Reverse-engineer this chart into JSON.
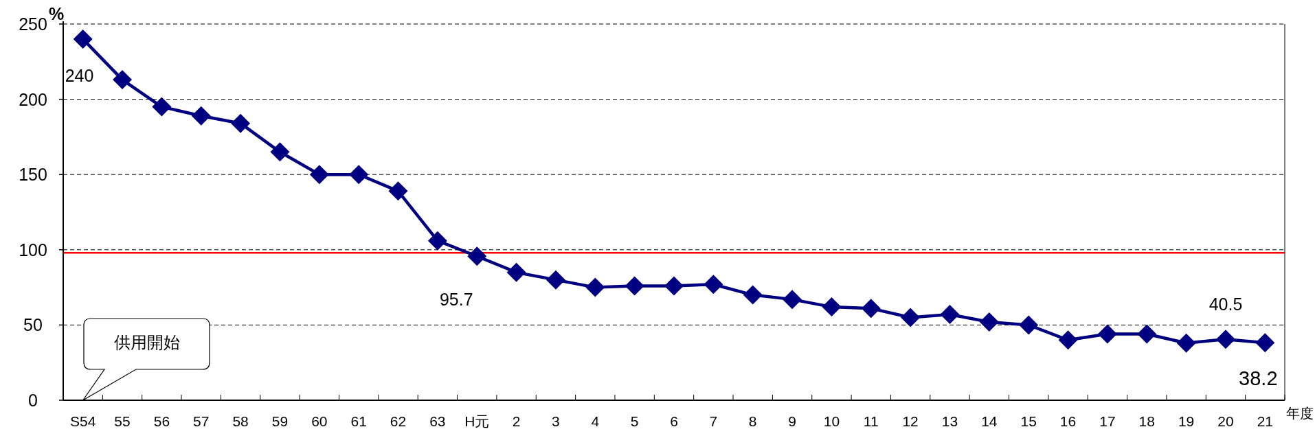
{
  "chart_data": {
    "type": "line",
    "ylabel": "%",
    "xlabel": "年度",
    "categories": [
      "S54",
      "55",
      "56",
      "57",
      "58",
      "59",
      "60",
      "61",
      "62",
      "63",
      "H元",
      "2",
      "3",
      "4",
      "5",
      "6",
      "7",
      "8",
      "9",
      "10",
      "11",
      "12",
      "13",
      "14",
      "15",
      "16",
      "17",
      "18",
      "19",
      "20",
      "21"
    ],
    "series": [
      {
        "color": "#000080",
        "values": [
          240,
          213,
          195,
          189,
          184,
          165,
          150,
          150,
          139,
          106,
          95.7,
          85,
          80,
          75,
          76,
          76,
          77,
          70,
          67,
          62,
          61,
          55,
          57,
          52,
          50,
          40,
          44,
          44,
          38,
          40.5,
          38.2
        ],
        "value_labels": [
          "240",
          null,
          null,
          null,
          null,
          null,
          null,
          null,
          null,
          null,
          "95.7",
          null,
          null,
          null,
          null,
          null,
          null,
          null,
          null,
          null,
          null,
          null,
          null,
          null,
          null,
          null,
          null,
          null,
          null,
          "40.5",
          "38.2"
        ]
      }
    ],
    "ylim": [
      0,
      250
    ],
    "yticks": [
      0,
      50,
      100,
      150,
      200,
      250
    ],
    "grid": "y",
    "marker": "diamond",
    "line_style": "solid",
    "ref_lines": [
      {
        "axis": "y",
        "value": 98,
        "color": "#ff0000",
        "line_style": "solid"
      }
    ],
    "annotations": [
      "供用開始"
    ]
  }
}
